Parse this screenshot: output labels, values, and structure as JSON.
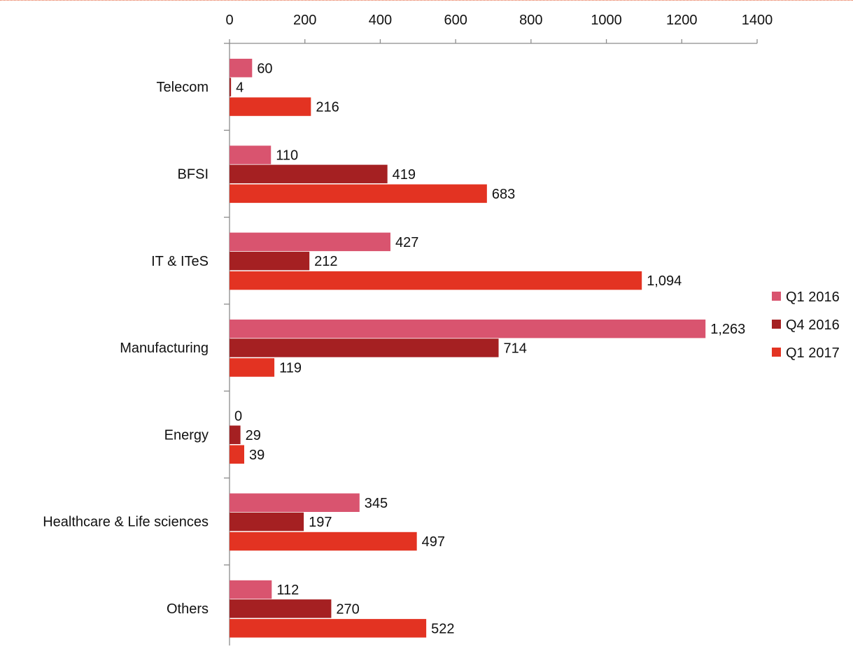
{
  "chart_data": {
    "type": "bar",
    "orientation": "horizontal",
    "categories": [
      "Telecom",
      "BFSI",
      "IT & ITeS",
      "Manufacturing",
      "Energy",
      "Healthcare & Life sciences",
      "Others"
    ],
    "series": [
      {
        "name": "Q1 2016",
        "color": "#d9546f",
        "values": [
          60,
          110,
          427,
          1263,
          0,
          345,
          112
        ],
        "labels": [
          "60",
          "110",
          "427",
          "1,263",
          "0",
          "345",
          "112"
        ]
      },
      {
        "name": "Q4 2016",
        "color": "#a52022",
        "values": [
          4,
          419,
          212,
          714,
          29,
          197,
          270
        ],
        "labels": [
          "4",
          "419",
          "212",
          "714",
          "29",
          "197",
          "270"
        ]
      },
      {
        "name": "Q1 2017",
        "color": "#e33322",
        "values": [
          216,
          683,
          1094,
          119,
          39,
          497,
          522
        ],
        "labels": [
          "216",
          "683",
          "1,094",
          "119",
          "39",
          "497",
          "522"
        ]
      }
    ],
    "xlim": [
      0,
      1400
    ],
    "xticks": [
      0,
      200,
      400,
      600,
      800,
      1000,
      1200,
      1400
    ],
    "xtick_labels": [
      "0",
      "200",
      "400",
      "600",
      "800",
      "1000",
      "1200",
      "1400"
    ],
    "axis_position": "top",
    "legend_position": "right",
    "grid": false,
    "title": "",
    "xlabel": "",
    "ylabel": ""
  }
}
